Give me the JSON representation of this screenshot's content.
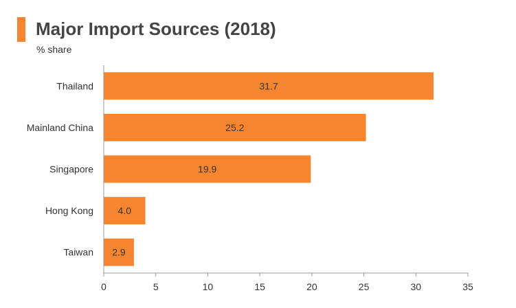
{
  "header": {
    "title": "Major Import Sources (2018)",
    "subtitle": "% share"
  },
  "colors": {
    "accent": "#F5862F",
    "bar": "#F5862F",
    "axis": "#999999",
    "text": "#333333"
  },
  "chart_data": {
    "type": "bar",
    "orientation": "horizontal",
    "title": "Major Import Sources (2018)",
    "subtitle": "% share",
    "categories": [
      "Thailand",
      "Mainland China",
      "Singapore",
      "Hong Kong",
      "Taiwan"
    ],
    "values": [
      31.7,
      25.2,
      19.9,
      4.0,
      2.9
    ],
    "value_labels": [
      "31.7",
      "25.2",
      "19.9",
      "4.0",
      "2.9"
    ],
    "xlim": [
      0,
      35
    ],
    "xticks": [
      0,
      5,
      10,
      15,
      20,
      25,
      30,
      35
    ],
    "xlabel": "",
    "ylabel": "",
    "grid": false,
    "legend": "none"
  }
}
